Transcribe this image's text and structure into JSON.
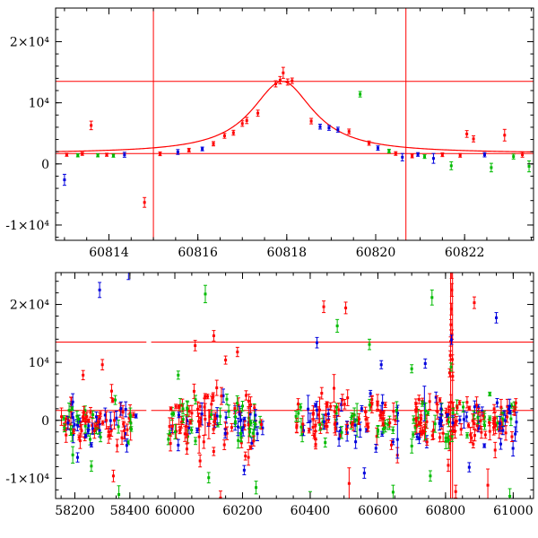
{
  "figure_title": "",
  "chart_style": {
    "bg": "#ffffff",
    "frame_color": "#000000",
    "ref_line_color": "#ff0000",
    "point_colors": {
      "r": "#ff0000",
      "g": "#00bb00",
      "b": "#0000dd"
    }
  },
  "chart_data": [
    {
      "id": "top",
      "type": "scatter",
      "title": "",
      "xlabel": "",
      "ylabel": "",
      "xlim": [
        60812.8,
        60823.55
      ],
      "ylim": [
        -12500,
        25500
      ],
      "xticks": {
        "major": [
          60814,
          60816,
          60818,
          60820,
          60822
        ],
        "labels": [
          "60814",
          "60816",
          "60818",
          "60820",
          "60822"
        ],
        "minor_step": 0.5
      },
      "yticks": {
        "major": [
          -10000,
          0,
          10000,
          20000
        ],
        "labels": [
          "-1×10⁴",
          "0",
          "10⁴",
          "2×10⁴"
        ],
        "minor_step": 2000
      },
      "hlines": [
        1700,
        13500
      ],
      "vlines": [
        60815.0,
        60820.68
      ],
      "model_curve": {
        "shape": "lorentzian",
        "base": 1700,
        "amp": 11800,
        "t0": 60817.9,
        "hwhm": 0.85
      },
      "points": [
        [
          60813.0,
          -2600,
          900,
          "b"
        ],
        [
          60813.05,
          1500,
          250,
          "r"
        ],
        [
          60813.3,
          1400,
          250,
          "g"
        ],
        [
          60813.4,
          1650,
          250,
          "r"
        ],
        [
          60813.6,
          6300,
          700,
          "r"
        ],
        [
          60813.75,
          1400,
          250,
          "g"
        ],
        [
          60813.95,
          1500,
          250,
          "r"
        ],
        [
          60814.1,
          1350,
          250,
          "g"
        ],
        [
          60814.35,
          1500,
          400,
          "b"
        ],
        [
          60814.8,
          -6300,
          800,
          "r"
        ],
        [
          60815.15,
          1650,
          300,
          "r"
        ],
        [
          60815.55,
          1950,
          400,
          "b"
        ],
        [
          60815.8,
          2250,
          300,
          "r"
        ],
        [
          60816.1,
          2450,
          300,
          "b"
        ],
        [
          60816.35,
          3300,
          350,
          "r"
        ],
        [
          60816.6,
          4600,
          400,
          "r"
        ],
        [
          60816.8,
          5100,
          400,
          "r"
        ],
        [
          60817.0,
          6600,
          450,
          "r"
        ],
        [
          60817.1,
          7100,
          500,
          "r"
        ],
        [
          60817.35,
          8300,
          500,
          "r"
        ],
        [
          60817.75,
          13100,
          500,
          "r"
        ],
        [
          60817.85,
          13700,
          600,
          "r"
        ],
        [
          60817.92,
          14900,
          900,
          "r"
        ],
        [
          60818.02,
          13400,
          500,
          "r"
        ],
        [
          60818.12,
          13600,
          450,
          "r"
        ],
        [
          60818.55,
          7000,
          450,
          "r"
        ],
        [
          60818.75,
          6100,
          400,
          "b"
        ],
        [
          60818.95,
          5900,
          400,
          "b"
        ],
        [
          60819.15,
          5600,
          400,
          "b"
        ],
        [
          60819.4,
          5300,
          400,
          "r"
        ],
        [
          60819.65,
          11400,
          450,
          "g"
        ],
        [
          60819.85,
          3400,
          350,
          "r"
        ],
        [
          60820.05,
          2600,
          350,
          "b"
        ],
        [
          60820.3,
          2100,
          300,
          "g"
        ],
        [
          60820.45,
          1700,
          300,
          "r"
        ],
        [
          60820.6,
          1100,
          600,
          "b"
        ],
        [
          60820.82,
          1300,
          300,
          "r"
        ],
        [
          60820.95,
          1550,
          300,
          "b"
        ],
        [
          60821.1,
          1200,
          300,
          "g"
        ],
        [
          60821.3,
          900,
          800,
          "b"
        ],
        [
          60821.5,
          1500,
          300,
          "r"
        ],
        [
          60821.7,
          -300,
          650,
          "g"
        ],
        [
          60821.9,
          1400,
          300,
          "r"
        ],
        [
          60822.05,
          4900,
          550,
          "r"
        ],
        [
          60822.2,
          4100,
          500,
          "r"
        ],
        [
          60822.45,
          1500,
          350,
          "b"
        ],
        [
          60822.6,
          -600,
          700,
          "g"
        ],
        [
          60822.9,
          4700,
          950,
          "r"
        ],
        [
          60823.1,
          1200,
          400,
          "g"
        ],
        [
          60823.3,
          1500,
          400,
          "r"
        ],
        [
          60823.45,
          -400,
          900,
          "g"
        ]
      ]
    },
    {
      "id": "bottom",
      "type": "scatter",
      "title": "",
      "xlabel": "",
      "ylabel": "",
      "x_segments": [
        {
          "domain": [
            58130,
            58460
          ],
          "range": [
            0.0,
            0.19
          ]
        },
        {
          "domain": [
            59930,
            61060
          ],
          "range": [
            0.2,
            1.0
          ]
        }
      ],
      "ylim": [
        -13500,
        25500
      ],
      "xticks": {
        "minor_step": 50,
        "segments": [
          {
            "major": [
              58200,
              58400
            ],
            "labels": [
              "58200",
              "58400"
            ]
          },
          {
            "major": [
              60000,
              60200,
              60400,
              60600,
              60800,
              61000
            ],
            "labels": [
              "60000",
              "60200",
              "60400",
              "60600",
              "60800",
              "61000"
            ]
          }
        ]
      },
      "yticks": {
        "major": [
          -10000,
          0,
          10000,
          20000
        ],
        "labels": [
          "-1×10⁴",
          "0",
          "10⁴",
          "2×10⁴"
        ],
        "minor_step": 2000
      },
      "hlines": [
        1700,
        13500
      ],
      "vlines": [
        60815.0,
        60820.68
      ],
      "outlier_points": [
        [
          58290,
          22500,
          1300,
          "b"
        ],
        [
          58395,
          25800,
          1500,
          "b"
        ],
        [
          58300,
          9600,
          900,
          "r"
        ],
        [
          58230,
          7800,
          800,
          "r"
        ],
        [
          58340,
          -9600,
          1000,
          "r"
        ],
        [
          58360,
          -12800,
          1500,
          "g"
        ],
        [
          58260,
          -7900,
          900,
          "g"
        ],
        [
          58210,
          -6400,
          800,
          "b"
        ],
        [
          60090,
          21800,
          1500,
          "g"
        ],
        [
          60115,
          14600,
          900,
          "r"
        ],
        [
          60060,
          12900,
          900,
          "r"
        ],
        [
          60150,
          10400,
          700,
          "r"
        ],
        [
          60185,
          11800,
          800,
          "r"
        ],
        [
          60010,
          7800,
          700,
          "g"
        ],
        [
          60100,
          -9900,
          900,
          "g"
        ],
        [
          60205,
          -8600,
          800,
          "b"
        ],
        [
          60240,
          -11600,
          1100,
          "g"
        ],
        [
          60135,
          -13400,
          1200,
          "r"
        ],
        [
          60440,
          19600,
          1000,
          "r"
        ],
        [
          60505,
          19400,
          1000,
          "r"
        ],
        [
          60480,
          16300,
          1100,
          "g"
        ],
        [
          60420,
          13400,
          900,
          "b"
        ],
        [
          60575,
          13100,
          900,
          "g"
        ],
        [
          60610,
          9600,
          700,
          "b"
        ],
        [
          60400,
          -13700,
          1400,
          "g"
        ],
        [
          60515,
          -10900,
          2700,
          "r"
        ],
        [
          60560,
          -9100,
          900,
          "b"
        ],
        [
          60645,
          -12400,
          1200,
          "g"
        ],
        [
          60760,
          21200,
          1300,
          "g"
        ],
        [
          60885,
          20300,
          1000,
          "r"
        ],
        [
          60950,
          17700,
          900,
          "b"
        ],
        [
          60740,
          9800,
          800,
          "b"
        ],
        [
          60700,
          8900,
          700,
          "g"
        ],
        [
          60812,
          8200,
          700,
          "r"
        ],
        [
          60814,
          11200,
          800,
          "r"
        ],
        [
          60815,
          13600,
          800,
          "r"
        ],
        [
          60816,
          16500,
          900,
          "r"
        ],
        [
          60817,
          19200,
          1000,
          "r"
        ],
        [
          60818,
          25800,
          1300,
          "r"
        ],
        [
          60818.5,
          22500,
          1100,
          "r"
        ],
        [
          60819,
          14800,
          800,
          "r"
        ],
        [
          60820,
          10500,
          800,
          "r"
        ],
        [
          60817.5,
          13900,
          800,
          "b"
        ],
        [
          60816.5,
          9200,
          700,
          "g"
        ],
        [
          60821,
          7600,
          700,
          "r"
        ],
        [
          60830,
          -12300,
          1100,
          "r"
        ],
        [
          60990,
          -13100,
          1300,
          "g"
        ],
        [
          60755,
          -9600,
          900,
          "g"
        ],
        [
          60870,
          -8100,
          800,
          "b"
        ],
        [
          60925,
          -11200,
          2800,
          "r"
        ]
      ],
      "scatter_clusters": [
        {
          "x0": 58150,
          "x1": 58425,
          "n": 100,
          "mean": -200,
          "sigma": 2100,
          "err_min": 300,
          "err_max": 1500,
          "seed": 11,
          "color_weights": [
            0.5,
            0.27,
            0.23
          ]
        },
        {
          "x0": 59980,
          "x1": 60260,
          "n": 130,
          "mean": -200,
          "sigma": 2300,
          "err_min": 300,
          "err_max": 1500,
          "seed": 22,
          "color_weights": [
            0.5,
            0.27,
            0.23
          ]
        },
        {
          "x0": 60350,
          "x1": 60660,
          "n": 115,
          "mean": -200,
          "sigma": 2200,
          "err_min": 300,
          "err_max": 1500,
          "seed": 33,
          "color_weights": [
            0.5,
            0.27,
            0.23
          ]
        },
        {
          "x0": 60700,
          "x1": 61010,
          "n": 150,
          "mean": -200,
          "sigma": 2300,
          "err_min": 300,
          "err_max": 1500,
          "seed": 44,
          "color_weights": [
            0.5,
            0.27,
            0.23
          ]
        }
      ]
    }
  ]
}
